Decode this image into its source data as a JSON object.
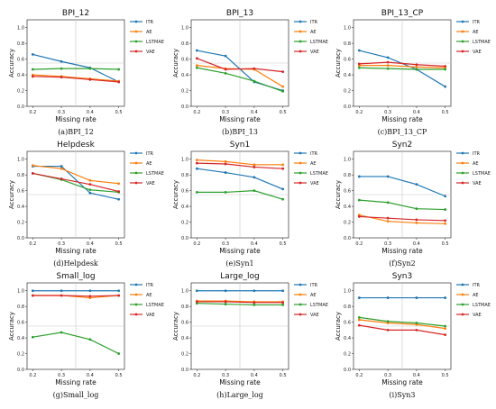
{
  "series_styles": [
    {
      "name": "ITR",
      "color": "#1f77b4"
    },
    {
      "name": "AE",
      "color": "#ff7f0e"
    },
    {
      "name": "LSTMAE",
      "color": "#2ca02c"
    },
    {
      "name": "VAE",
      "color": "#d62728"
    }
  ],
  "chart_data": [
    {
      "type": "line",
      "title": "BPI_12",
      "caption": "(a)BPI_12",
      "xlabel": "Missing rate",
      "ylabel": "Accuracy",
      "x": [
        0.2,
        0.3,
        0.4,
        0.5
      ],
      "xticks": [
        "0.2",
        "0.3",
        "0.4",
        "0.5"
      ],
      "ylim": [
        0,
        1.1
      ],
      "yticks": [
        "0.0",
        "0.2",
        "0.4",
        "0.6",
        "0.8",
        "1.0"
      ],
      "grid": {
        "vline": 0.35,
        "hline": 0.55
      },
      "legend": "right",
      "series": [
        {
          "name": "ITR",
          "values": [
            0.66,
            0.57,
            0.49,
            0.31
          ]
        },
        {
          "name": "AE",
          "values": [
            0.4,
            0.38,
            0.35,
            0.32
          ]
        },
        {
          "name": "LSTMAE",
          "values": [
            0.47,
            0.48,
            0.48,
            0.47
          ]
        },
        {
          "name": "VAE",
          "values": [
            0.38,
            0.37,
            0.34,
            0.31
          ]
        }
      ]
    },
    {
      "type": "line",
      "title": "BPI_13",
      "caption": "(b)BPI_13",
      "xlabel": "Missing rate",
      "ylabel": "Accuracy",
      "x": [
        0.2,
        0.3,
        0.4,
        0.5
      ],
      "xticks": [
        "0.2",
        "0.3",
        "0.4",
        "0.5"
      ],
      "ylim": [
        0,
        1.1
      ],
      "yticks": [
        "0.0",
        "0.2",
        "0.4",
        "0.6",
        "0.8",
        "1.0"
      ],
      "grid": {
        "vline": 0.35,
        "hline": 0.55
      },
      "legend": "right",
      "series": [
        {
          "name": "ITR",
          "values": [
            0.71,
            0.64,
            0.31,
            0.2
          ]
        },
        {
          "name": "AE",
          "values": [
            0.52,
            0.48,
            0.47,
            0.25
          ]
        },
        {
          "name": "LSTMAE",
          "values": [
            0.49,
            0.42,
            0.32,
            0.19
          ]
        },
        {
          "name": "VAE",
          "values": [
            0.61,
            0.47,
            0.48,
            0.44
          ]
        }
      ]
    },
    {
      "type": "line",
      "title": "BPI_13_CP",
      "caption": "(c)BPI_13_CP",
      "xlabel": "Missing rate",
      "ylabel": "Accuracy",
      "x": [
        0.2,
        0.3,
        0.4,
        0.5
      ],
      "xticks": [
        "0.2",
        "0.3",
        "0.4",
        "0.5"
      ],
      "ylim": [
        0,
        1.1
      ],
      "yticks": [
        "0.0",
        "0.2",
        "0.4",
        "0.6",
        "0.8",
        "1.0"
      ],
      "grid": {
        "vline": 0.35,
        "hline": 0.55
      },
      "legend": "right",
      "series": [
        {
          "name": "ITR",
          "values": [
            0.71,
            0.62,
            0.47,
            0.25
          ]
        },
        {
          "name": "AE",
          "values": [
            0.52,
            0.52,
            0.5,
            0.49
          ]
        },
        {
          "name": "LSTMAE",
          "values": [
            0.49,
            0.48,
            0.47,
            0.47
          ]
        },
        {
          "name": "VAE",
          "values": [
            0.54,
            0.56,
            0.53,
            0.51
          ]
        }
      ]
    },
    {
      "type": "line",
      "title": "Helpdesk",
      "caption": "(d)Helpdesk",
      "xlabel": "Missing rate",
      "ylabel": "Accuracy",
      "x": [
        0.2,
        0.3,
        0.4,
        0.5
      ],
      "xticks": [
        "0.2",
        "0.3",
        "0.4",
        "0.5"
      ],
      "ylim": [
        0,
        1.1
      ],
      "yticks": [
        "0.0",
        "0.2",
        "0.4",
        "0.6",
        "0.8",
        "1.0"
      ],
      "grid": {
        "vline": 0.35,
        "hline": 0.55
      },
      "legend": "right",
      "series": [
        {
          "name": "ITR",
          "values": [
            0.91,
            0.91,
            0.57,
            0.49
          ]
        },
        {
          "name": "AE",
          "values": [
            0.92,
            0.88,
            0.73,
            0.69
          ]
        },
        {
          "name": "LSTMAE",
          "values": [
            0.82,
            0.74,
            0.61,
            0.58
          ]
        },
        {
          "name": "VAE",
          "values": [
            0.82,
            0.75,
            0.68,
            0.59
          ]
        }
      ]
    },
    {
      "type": "line",
      "title": "Syn1",
      "caption": "(e)Syn1",
      "xlabel": "Missing rate",
      "ylabel": "Accuracy",
      "x": [
        0.2,
        0.3,
        0.4,
        0.5
      ],
      "xticks": [
        "0.2",
        "0.3",
        "0.4",
        "0.5"
      ],
      "ylim": [
        0,
        1.1
      ],
      "yticks": [
        "0.0",
        "0.2",
        "0.4",
        "0.6",
        "0.8",
        "1.0"
      ],
      "grid": {
        "vline": 0.35,
        "hline": 0.55
      },
      "legend": "right",
      "series": [
        {
          "name": "ITR",
          "values": [
            0.88,
            0.83,
            0.77,
            0.62
          ]
        },
        {
          "name": "AE",
          "values": [
            0.99,
            0.97,
            0.93,
            0.93
          ]
        },
        {
          "name": "LSTMAE",
          "values": [
            0.58,
            0.58,
            0.6,
            0.49
          ]
        },
        {
          "name": "VAE",
          "values": [
            0.95,
            0.94,
            0.9,
            0.88
          ]
        }
      ]
    },
    {
      "type": "line",
      "title": "Syn2",
      "caption": "(f)Syn2",
      "xlabel": "Missing rate",
      "ylabel": "Accuracy",
      "x": [
        0.2,
        0.3,
        0.4,
        0.5
      ],
      "xticks": [
        "0.2",
        "0.3",
        "0.4",
        "0.5"
      ],
      "ylim": [
        0,
        1.1
      ],
      "yticks": [
        "0.0",
        "0.2",
        "0.4",
        "0.6",
        "0.8",
        "1.0"
      ],
      "grid": {
        "vline": 0.35,
        "hline": 0.55
      },
      "legend": "right",
      "series": [
        {
          "name": "ITR",
          "values": [
            0.78,
            0.78,
            0.68,
            0.53
          ]
        },
        {
          "name": "AE",
          "values": [
            0.29,
            0.21,
            0.19,
            0.18
          ]
        },
        {
          "name": "LSTMAE",
          "values": [
            0.48,
            0.45,
            0.37,
            0.36
          ]
        },
        {
          "name": "VAE",
          "values": [
            0.27,
            0.25,
            0.23,
            0.22
          ]
        }
      ]
    },
    {
      "type": "line",
      "title": "Small_log",
      "caption": "(g)Small_log",
      "xlabel": "Missing rate",
      "ylabel": "Accuracy",
      "x": [
        0.2,
        0.3,
        0.4,
        0.5
      ],
      "xticks": [
        "0.2",
        "0.3",
        "0.4",
        "0.5"
      ],
      "ylim": [
        0,
        1.1
      ],
      "yticks": [
        "0.0",
        "0.2",
        "0.4",
        "0.6",
        "0.8",
        "1.0"
      ],
      "grid": {
        "vline": 0.35,
        "hline": 0.55
      },
      "legend": "right",
      "series": [
        {
          "name": "ITR",
          "values": [
            1.0,
            1.0,
            1.0,
            1.0
          ]
        },
        {
          "name": "AE",
          "values": [
            0.94,
            0.94,
            0.91,
            0.94
          ]
        },
        {
          "name": "LSTMAE",
          "values": [
            0.41,
            0.47,
            0.38,
            0.2
          ]
        },
        {
          "name": "VAE",
          "values": [
            0.94,
            0.94,
            0.93,
            0.94
          ]
        }
      ]
    },
    {
      "type": "line",
      "title": "Large_log",
      "caption": "(h)Large_log",
      "xlabel": "Missing rate",
      "ylabel": "Accuracy",
      "x": [
        0.2,
        0.3,
        0.4,
        0.5
      ],
      "xticks": [
        "0.2",
        "0.3",
        "0.4",
        "0.5"
      ],
      "ylim": [
        0,
        1.1
      ],
      "yticks": [
        "0.0",
        "0.2",
        "0.4",
        "0.6",
        "0.8",
        "1.0"
      ],
      "grid": {
        "vline": 0.35,
        "hline": 0.55
      },
      "legend": "right",
      "series": [
        {
          "name": "ITR",
          "values": [
            1.0,
            1.0,
            1.0,
            1.0
          ]
        },
        {
          "name": "AE",
          "values": [
            0.87,
            0.87,
            0.86,
            0.86
          ]
        },
        {
          "name": "LSTMAE",
          "values": [
            0.84,
            0.83,
            0.82,
            0.82
          ]
        },
        {
          "name": "VAE",
          "values": [
            0.86,
            0.86,
            0.85,
            0.85
          ]
        }
      ]
    },
    {
      "type": "line",
      "title": "Syn3",
      "caption": "(i)Syn3",
      "xlabel": "Missing rate",
      "ylabel": "Accuracy",
      "x": [
        0.2,
        0.3,
        0.4,
        0.5
      ],
      "xticks": [
        "0.2",
        "0.3",
        "0.4",
        "0.5"
      ],
      "ylim": [
        0,
        1.1
      ],
      "yticks": [
        "0.0",
        "0.2",
        "0.4",
        "0.6",
        "0.8",
        "1.0"
      ],
      "grid": {
        "vline": 0.35,
        "hline": 0.55
      },
      "legend": "right",
      "series": [
        {
          "name": "ITR",
          "values": [
            0.91,
            0.91,
            0.91,
            0.91
          ]
        },
        {
          "name": "AE",
          "values": [
            0.63,
            0.59,
            0.57,
            0.52
          ]
        },
        {
          "name": "LSTMAE",
          "values": [
            0.66,
            0.61,
            0.59,
            0.55
          ]
        },
        {
          "name": "VAE",
          "values": [
            0.56,
            0.5,
            0.5,
            0.44
          ]
        }
      ]
    }
  ]
}
